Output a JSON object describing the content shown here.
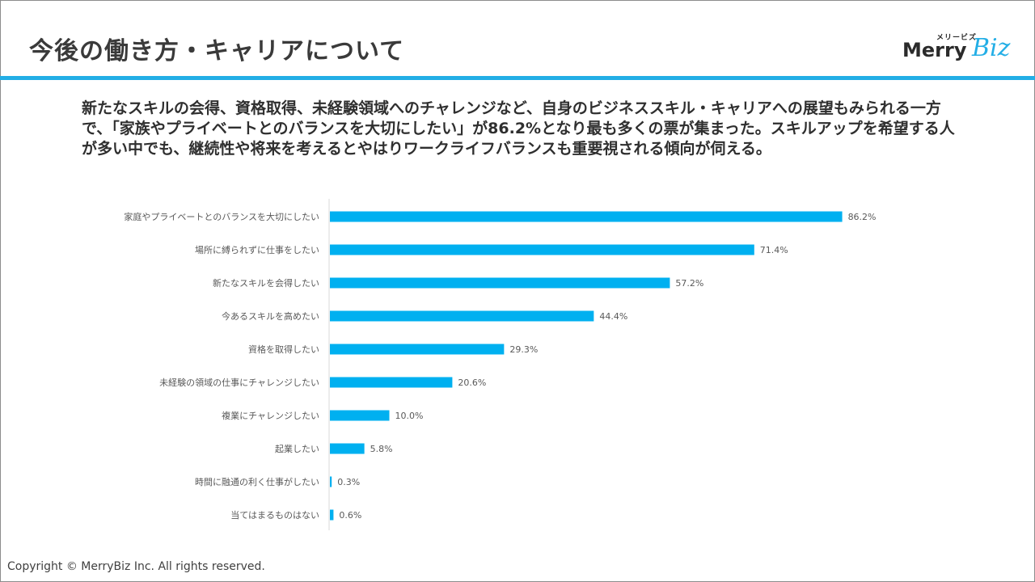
{
  "header": {
    "title": "今後の働き方・キャリアについて",
    "logo_kana": "メリービズ",
    "logo_merry": "Merry",
    "logo_biz": "Biz"
  },
  "lead": {
    "text": "新たなスキルの会得、資格取得、未経験領域へのチャレンジなど、自身のビジネススキル・キャリアへの展望もみられる一方で、「家族やプライベートとのバランスを大切にしたい」が86.2%となり最も多くの票が集まった。スキルアップを希望する人が多い中でも、継続性や将来を考えるとやはりワークライフバランスも重要視される傾向が伺える。"
  },
  "chart_data": {
    "type": "bar",
    "orientation": "horizontal",
    "categories": [
      "家庭やプライベートとのバランスを大切にしたい",
      "場所に縛られずに仕事をしたい",
      "新たなスキルを会得したい",
      "今あるスキルを高めたい",
      "資格を取得したい",
      "未経験の領域の仕事にチャレンジしたい",
      "複業にチャレンジしたい",
      "起業したい",
      "時間に融通の利く仕事がしたい",
      "当てはまるものはない"
    ],
    "values": [
      86.2,
      71.4,
      57.2,
      44.4,
      29.3,
      20.6,
      10.0,
      5.8,
      0.3,
      0.6
    ],
    "value_labels": [
      "86.2%",
      "71.4%",
      "57.2%",
      "44.4%",
      "29.3%",
      "20.6%",
      "10.0%",
      "5.8%",
      "0.3%",
      "0.6%"
    ],
    "xlim": [
      0,
      100
    ],
    "bar_color": "#00b0f0",
    "grid": false,
    "legend": "none"
  },
  "footer": {
    "copyright": "Copyright © MerryBiz Inc. All rights reserved."
  }
}
